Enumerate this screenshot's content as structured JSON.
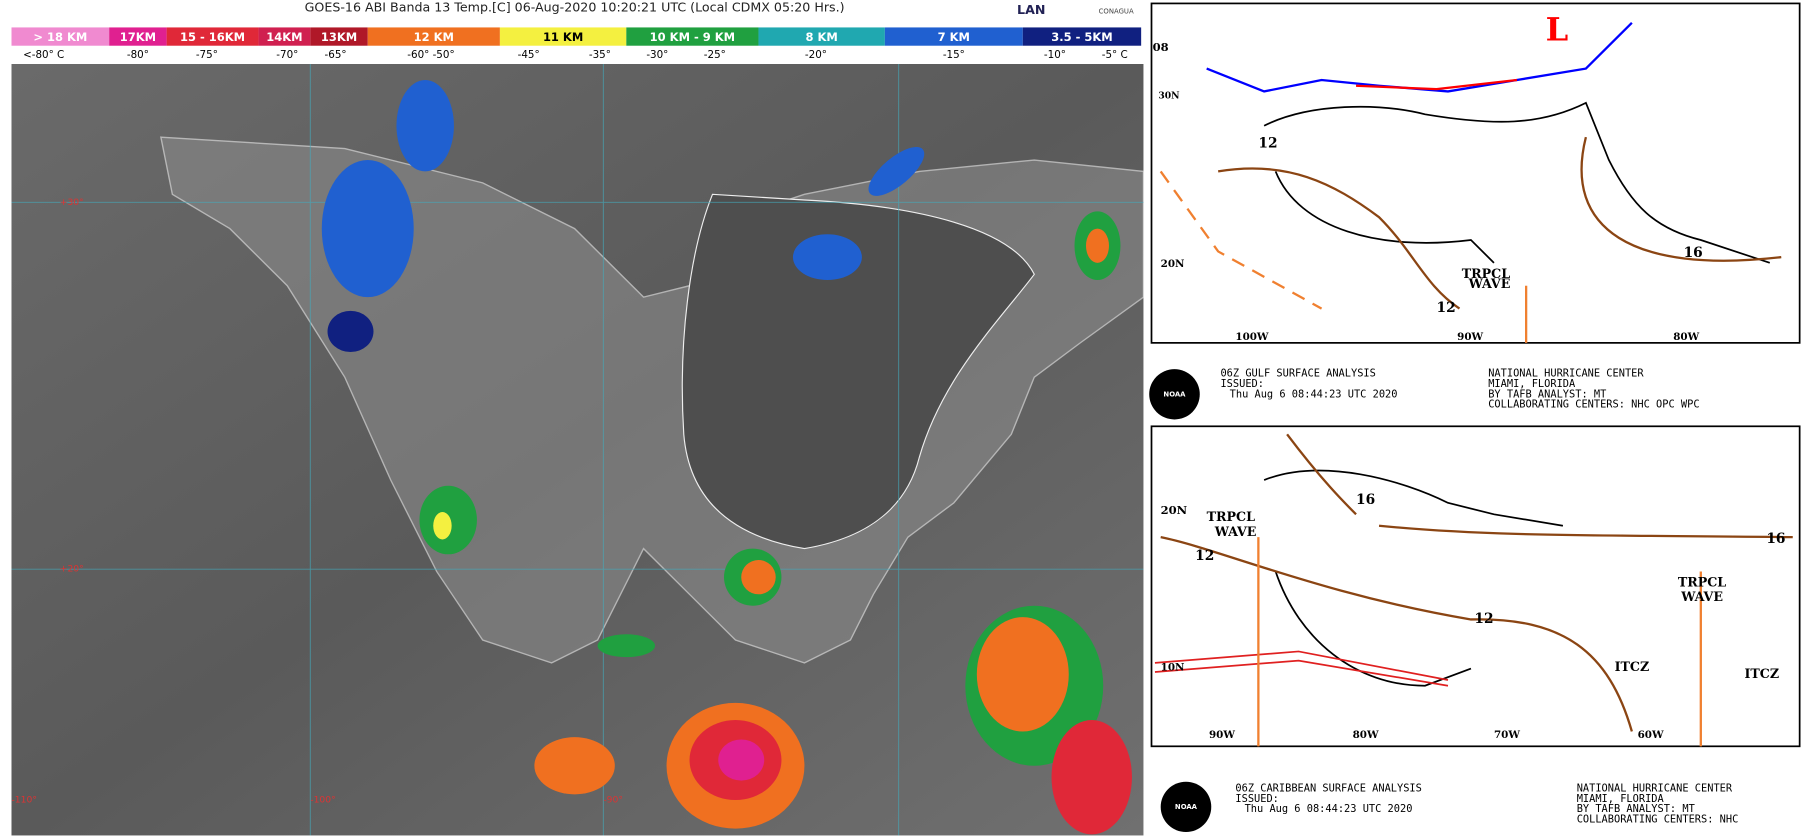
{
  "satellite": {
    "title": "GOES-16 ABI Banda 13 Temp.[C] 06-Aug-2020 10:20:21 UTC (Local CDMX  05:20 Hrs.)",
    "logo": "LAN",
    "logo2": "CONAGUA",
    "legend": [
      {
        "label": "> 18 KM",
        "color": "#f08ad0"
      },
      {
        "label": "17KM",
        "color": "#e02090"
      },
      {
        "label": "15 - 16KM",
        "color": "#e02838"
      },
      {
        "label": "14KM",
        "color": "#d02050"
      },
      {
        "label": "13KM",
        "color": "#b01828"
      },
      {
        "label": "12 KM",
        "color": "#f07020"
      },
      {
        "label": "11 KM",
        "color": "#f4f040"
      },
      {
        "label": "10 KM - 9 KM",
        "color": "#20a040"
      },
      {
        "label": "8 KM",
        "color": "#20a8b0"
      },
      {
        "label": "7 KM",
        "color": "#2060d0"
      },
      {
        "label": "3.5 - 5KM",
        "color": "#102080"
      }
    ],
    "temps": [
      "<-80° C",
      "-80°",
      "-75°",
      "-70°",
      "-65°",
      "-60°  -50°",
      "-45°",
      "-35°",
      "-30°",
      "-25°",
      "-20°",
      "-15°",
      "-10°",
      "-5°  C"
    ],
    "grid_labels": [
      "+30°",
      "+20°",
      "-110°",
      "-100°",
      "-90°"
    ]
  },
  "gulf_map": {
    "labels": [
      "L",
      "12",
      "16",
      "20N",
      "TRPCL",
      "WAVE",
      "12",
      "100W",
      "90W",
      "80W",
      "08",
      "30N"
    ],
    "logo": "NOAA",
    "caption_left": [
      "06Z GULF SURFACE ANALYSIS",
      "ISSUED:",
      "Thu Aug 6 08:44:23 UTC 2020"
    ],
    "caption_right": [
      "NATIONAL HURRICANE CENTER",
      "MIAMI, FLORIDA",
      "BY TAFB ANALYST: MT",
      "COLLABORATING CENTERS: NHC OPC WPC"
    ]
  },
  "caribbean_map": {
    "labels": [
      "20N",
      "TRPCL",
      "WAVE",
      "12",
      "16",
      "12",
      "16",
      "TRPCL",
      "WAVE",
      "ITCZ",
      "ITCZ",
      "10N",
      "90W",
      "80W",
      "70W",
      "60W"
    ],
    "logo": "NOAA",
    "caption_left": [
      "06Z CARIBBEAN SURFACE ANALYSIS",
      "ISSUED:",
      "Thu Aug 6 08:44:23 UTC 2020"
    ],
    "caption_right": [
      "NATIONAL HURRICANE CENTER",
      "MIAMI, FLORIDA",
      "BY TAFB ANALYST: MT",
      "COLLABORATING CENTERS: NHC"
    ]
  }
}
